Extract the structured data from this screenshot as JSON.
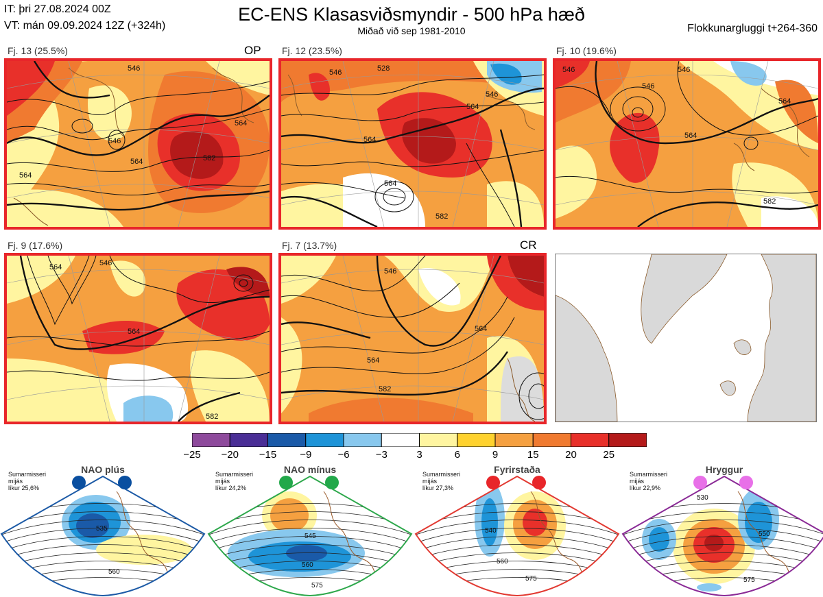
{
  "header": {
    "init_time": "IT: þri 27.08.2024 00Z",
    "valid_time": "VT: mán 09.09.2024 12Z  (+324h)",
    "title": "EC-ENS Klasasviðsmyndir - 500 hPa hæð",
    "subtitle": "Miðað við sep 1981-2010",
    "window": "Flokkunargluggi t+264-360"
  },
  "panels": [
    {
      "label": "Fj. 13 (25.5%)",
      "tag": "OP"
    },
    {
      "label": "Fj. 12 (23.5%)",
      "tag": ""
    },
    {
      "label": "Fj. 10 (19.6%)",
      "tag": ""
    },
    {
      "label": "Fj. 9 (17.6%)",
      "tag": ""
    },
    {
      "label": "Fj. 7 (13.7%)",
      "tag": "CR"
    }
  ],
  "colorbar": {
    "ticks": [
      "−25",
      "−20",
      "−15",
      "−9",
      "−6",
      "−3",
      "3",
      "6",
      "9",
      "15",
      "20",
      "25"
    ],
    "colors": [
      "#8e4a9c",
      "#4a2e96",
      "#1a5aa8",
      "#1e94d8",
      "#88c8ee",
      "#ffffff",
      "#fff5a0",
      "#ffd22e",
      "#f5a040",
      "#f07a30",
      "#e8302a",
      "#b41a1a"
    ]
  },
  "regimes": [
    {
      "name": "NAO plús",
      "season": "Sumarmisseri",
      "sim": "mijás",
      "prob": "líkur 25,6%",
      "dot_color": "#0a4fa0",
      "frame_color": "#1c5aa6",
      "contours": [
        "535",
        "560"
      ]
    },
    {
      "name": "NAO mínus",
      "season": "Sumarmisseri",
      "sim": "mijás",
      "prob": "líkur 24,2%",
      "dot_color": "#22a84a",
      "frame_color": "#2ea84c",
      "contours": [
        "545",
        "560",
        "575"
      ]
    },
    {
      "name": "Fyrirstaða",
      "season": "Sumarmisseri",
      "sim": "mijás",
      "prob": "líkur 27,3%",
      "dot_color": "#e8262a",
      "frame_color": "#e23a32",
      "contours": [
        "540",
        "560",
        "575"
      ]
    },
    {
      "name": "Hryggur",
      "season": "Sumarmisseri",
      "sim": "mijás",
      "prob": "líkur 22,9%",
      "dot_color": "#e870e8",
      "frame_color": "#8a2a96",
      "contours": [
        "530",
        "550",
        "575"
      ]
    }
  ],
  "map_contours": {
    "p0": [
      "546",
      "564",
      "564",
      "582",
      "546",
      "564"
    ],
    "p1": [
      "528",
      "546",
      "546",
      "564",
      "564",
      "564",
      "582"
    ],
    "p2": [
      "546",
      "546",
      "546",
      "564",
      "582",
      "564"
    ],
    "p3": [
      "546",
      "564",
      "564",
      "582"
    ],
    "p4": [
      "546",
      "564",
      "582",
      "564"
    ]
  }
}
